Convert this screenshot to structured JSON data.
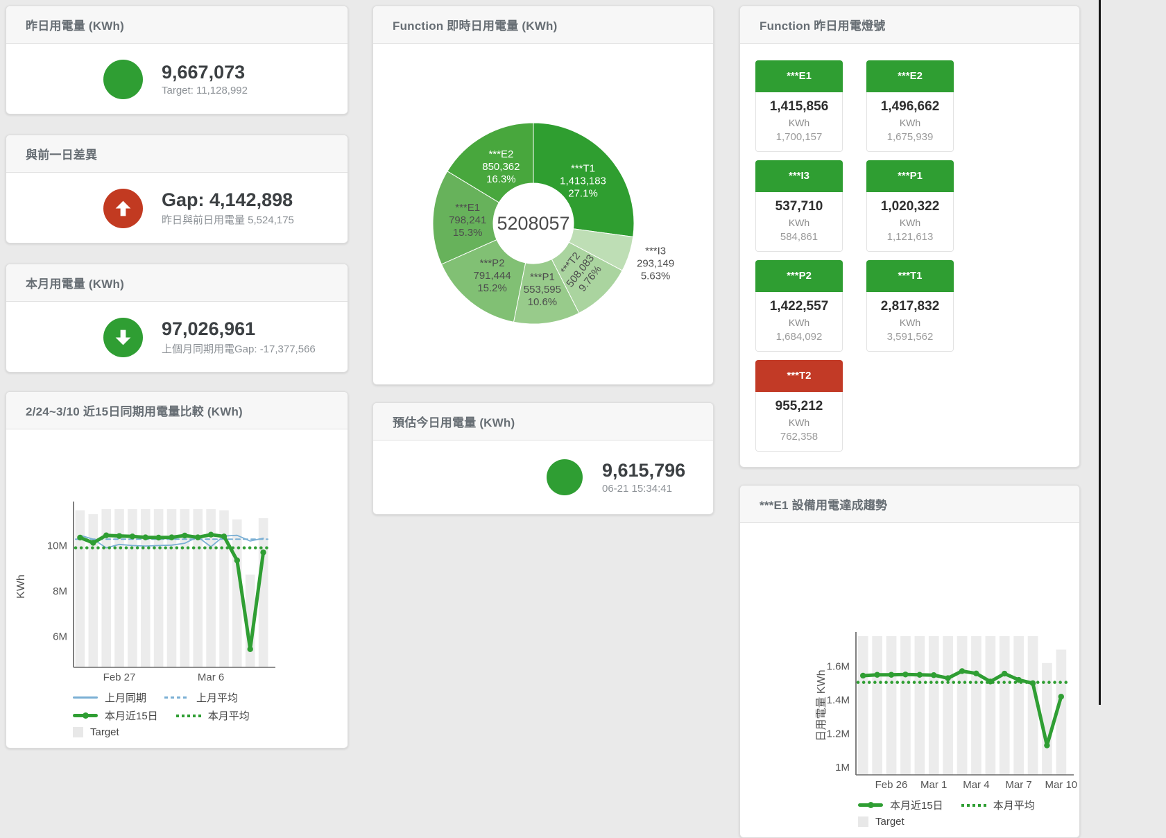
{
  "cards": {
    "yesterday": {
      "title": "昨日用電量 (KWh)",
      "value": "9,667,073",
      "subtitle": "Target: 11,128,992"
    },
    "day_gap": {
      "title": "與前一日差異",
      "value": "Gap: 4,142,898",
      "subtitle": "昨日與前日用電量 5,524,175"
    },
    "month": {
      "title": "本月用電量 (KWh)",
      "value": "97,026,961",
      "subtitle": "上個月同期用電Gap: -17,377,566"
    },
    "compare15": {
      "title": "2/24~3/10 近15日同期用電量比較 (KWh)"
    },
    "realtime": {
      "title": "Function 即時日用電量 (KWh)"
    },
    "estimate": {
      "title": "預估今日用電量 (KWh)",
      "value": "9,615,796",
      "timestamp": "06-21 15:34:41"
    },
    "lights": {
      "title": "Function 昨日用電燈號",
      "unit": "KWh",
      "tiles": [
        {
          "label": "***E1",
          "value": "1,415,856",
          "target": "1,700,157",
          "status": "green"
        },
        {
          "label": "***E2",
          "value": "1,496,662",
          "target": "1,675,939",
          "status": "green"
        },
        {
          "label": "***I3",
          "value": "537,710",
          "target": "584,861",
          "status": "green"
        },
        {
          "label": "***P1",
          "value": "1,020,322",
          "target": "1,121,613",
          "status": "green"
        },
        {
          "label": "***P2",
          "value": "1,422,557",
          "target": "1,684,092",
          "status": "green"
        },
        {
          "label": "***T1",
          "value": "2,817,832",
          "target": "3,591,562",
          "status": "green"
        },
        {
          "label": "***T2",
          "value": "955,212",
          "target": "762,358",
          "status": "red"
        }
      ]
    },
    "trend": {
      "title": "***E1 設備用電達成趨勢"
    }
  },
  "chart_data": [
    {
      "id": "donut",
      "type": "pie",
      "title": "Function 即時日用電量 (KWh)",
      "center_total": "5208057",
      "slices": [
        {
          "name": "***T1",
          "value": 1413183,
          "value_label": "1,413,183",
          "pct": "27.1%",
          "color": "#2f9e30",
          "text": "#ffffff"
        },
        {
          "name": "***I3",
          "value": 293149,
          "value_label": "293,149",
          "pct": "5.63%",
          "color": "#bedeb5",
          "text": "#4d4d4d",
          "outside": true
        },
        {
          "name": "***T2",
          "value": 508083,
          "value_label": "508,083",
          "pct": "9.76%",
          "color": "#aad49f",
          "text": "#4d4d4d",
          "rotate": -52
        },
        {
          "name": "***P1",
          "value": 553595,
          "value_label": "553,595",
          "pct": "10.6%",
          "color": "#98cb8b",
          "text": "#4d4d4d"
        },
        {
          "name": "***P2",
          "value": 791444,
          "value_label": "791,444",
          "pct": "15.2%",
          "color": "#81c074",
          "text": "#4d4d4d"
        },
        {
          "name": "***E1",
          "value": 798241,
          "value_label": "798,241",
          "pct": "15.3%",
          "color": "#67b25b",
          "text": "#4d4d4d"
        },
        {
          "name": "***E2",
          "value": 850362,
          "value_label": "850,362",
          "pct": "16.3%",
          "color": "#48a73d",
          "text": "#ffffff"
        }
      ]
    },
    {
      "id": "compare15",
      "type": "line-bar",
      "title": "2/24~3/10 近15日同期用電量比較 (KWh)",
      "ylabel": "KWh",
      "unit": "M KWh",
      "categories": [
        "2/24",
        "2/25",
        "2/26",
        "2/27",
        "2/28",
        "3/1",
        "3/2",
        "3/3",
        "3/4",
        "3/5",
        "3/6",
        "3/7",
        "3/8",
        "3/9",
        "3/10"
      ],
      "ylim_m": [
        4.65,
        11.75
      ],
      "yticks": [
        {
          "v": 6,
          "label": "6M"
        },
        {
          "v": 8,
          "label": "8M"
        },
        {
          "v": 10,
          "label": "10M"
        }
      ],
      "xticks": [
        {
          "i": 3,
          "label": "Feb 27"
        },
        {
          "i": 10,
          "label": "Mar 6"
        }
      ],
      "target_bars": [
        11.55,
        11.38,
        11.6,
        11.6,
        11.6,
        11.6,
        11.6,
        11.6,
        11.6,
        11.6,
        11.6,
        11.55,
        11.15,
        8.72,
        11.2
      ],
      "series": [
        {
          "name": "上月同期",
          "type": "line",
          "color": "#7aafd4",
          "values": [
            10.45,
            10.28,
            9.9,
            10.05,
            10.0,
            9.98,
            10.0,
            10.02,
            10.1,
            10.38,
            9.95,
            10.42,
            10.45,
            10.2,
            10.32
          ]
        },
        {
          "name": "上月平均",
          "type": "dashed",
          "color": "#7aafd4",
          "avg": 10.28
        },
        {
          "name": "本月平均",
          "type": "dotted",
          "color": "#2f9e33",
          "avg": 9.9
        },
        {
          "name": "本月近15日",
          "type": "thick",
          "color": "#2f9e33",
          "values": [
            10.35,
            10.12,
            10.45,
            10.42,
            10.4,
            10.36,
            10.35,
            10.36,
            10.44,
            10.36,
            10.48,
            10.4,
            9.35,
            5.45,
            9.7
          ]
        }
      ],
      "legend_rows": [
        [
          {
            "label": "上月同期",
            "swatch": "line",
            "color": "#7aafd4"
          },
          {
            "label": "上月平均",
            "swatch": "dashed",
            "color": "#7aafd4"
          }
        ],
        [
          {
            "label": "本月近15日",
            "swatch": "thick",
            "color": "#2f9e33"
          },
          {
            "label": "本月平均",
            "swatch": "dotted",
            "color": "#2f9e33"
          }
        ],
        [
          {
            "label": "Target",
            "swatch": "square",
            "color": "#e8e8e8"
          }
        ]
      ]
    },
    {
      "id": "trend",
      "type": "line-bar",
      "title": "***E1 設備用電達成趨勢",
      "ylabel": "日用電量 KWh",
      "unit": "M KWh",
      "categories": [
        "2/24",
        "2/25",
        "2/26",
        "2/27",
        "2/28",
        "3/1",
        "3/2",
        "3/3",
        "3/4",
        "3/5",
        "3/6",
        "3/7",
        "3/8",
        "3/9",
        "3/10"
      ],
      "ylim_m": [
        0.955,
        1.78
      ],
      "yticks": [
        {
          "v": 1,
          "label": "1M"
        },
        {
          "v": 1.2,
          "label": "1.2M"
        },
        {
          "v": 1.4,
          "label": "1.4M"
        },
        {
          "v": 1.6,
          "label": "1.6M"
        }
      ],
      "xticks": [
        {
          "i": 2,
          "label": "Feb 26"
        },
        {
          "i": 5,
          "label": "Mar 1"
        },
        {
          "i": 8,
          "label": "Mar 4"
        },
        {
          "i": 11,
          "label": "Mar 7"
        },
        {
          "i": 14,
          "label": "Mar 10"
        }
      ],
      "target_bars": [
        1.78,
        1.78,
        1.78,
        1.78,
        1.78,
        1.78,
        1.78,
        1.78,
        1.78,
        1.78,
        1.78,
        1.78,
        1.78,
        1.62,
        1.7
      ],
      "series": [
        {
          "name": "本月平均",
          "type": "dotted",
          "color": "#2f9e33",
          "avg": 1.505
        },
        {
          "name": "本月近15日",
          "type": "thick",
          "color": "#2f9e33",
          "values": [
            1.545,
            1.55,
            1.55,
            1.552,
            1.55,
            1.548,
            1.53,
            1.572,
            1.558,
            1.51,
            1.557,
            1.52,
            1.5,
            1.13,
            1.42
          ]
        }
      ],
      "legend_rows": [
        [
          {
            "label": "本月近15日",
            "swatch": "thick",
            "color": "#2f9e33"
          },
          {
            "label": "本月平均",
            "swatch": "dotted",
            "color": "#2f9e33"
          }
        ],
        [
          {
            "label": "Target",
            "swatch": "square",
            "color": "#e8e8e8"
          }
        ]
      ]
    }
  ]
}
